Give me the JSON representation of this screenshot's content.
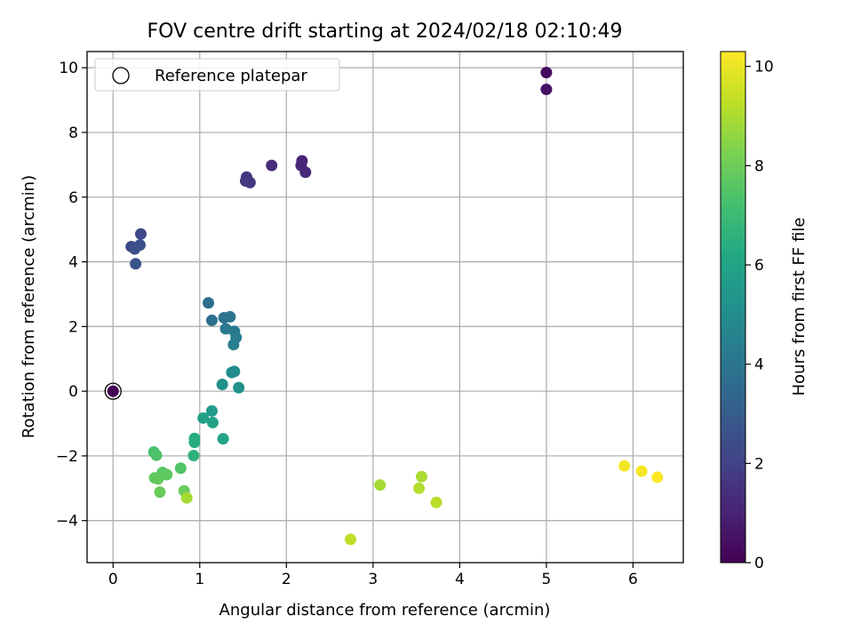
{
  "chart_data": {
    "type": "scatter",
    "title": "FOV centre drift starting at 2024/02/18 02:10:49",
    "xlabel": "Angular distance from reference (arcmin)",
    "ylabel": "Rotation from reference (arcmin)",
    "xlim": [
      -0.3,
      6.58
    ],
    "ylim": [
      -5.3,
      10.5
    ],
    "xticks": [
      0,
      1,
      2,
      3,
      4,
      5,
      6
    ],
    "yticks": [
      -4,
      -2,
      0,
      2,
      4,
      6,
      8,
      10
    ],
    "grid": true,
    "legend": {
      "position": "top-left",
      "entries": [
        "Reference platepar"
      ]
    },
    "colorbar": {
      "label": "Hours from first FF file",
      "range": [
        0,
        10.3
      ],
      "ticks": [
        0,
        2,
        4,
        6,
        8,
        10
      ],
      "colormap": "viridis"
    },
    "reference_point": {
      "x": 0,
      "y": 0
    },
    "points": [
      {
        "x": 0.0,
        "y": 0.0,
        "h": 0.0
      },
      {
        "x": 5.0,
        "y": 9.85,
        "h": 0.3
      },
      {
        "x": 5.0,
        "y": 9.33,
        "h": 0.5
      },
      {
        "x": 2.18,
        "y": 7.12,
        "h": 1.0
      },
      {
        "x": 2.17,
        "y": 6.98,
        "h": 1.1
      },
      {
        "x": 2.22,
        "y": 6.77,
        "h": 1.2
      },
      {
        "x": 1.83,
        "y": 6.98,
        "h": 1.3
      },
      {
        "x": 1.54,
        "y": 6.62,
        "h": 1.5
      },
      {
        "x": 1.53,
        "y": 6.5,
        "h": 1.6
      },
      {
        "x": 1.58,
        "y": 6.45,
        "h": 1.7
      },
      {
        "x": 0.32,
        "y": 4.86,
        "h": 2.2
      },
      {
        "x": 0.21,
        "y": 4.47,
        "h": 2.3
      },
      {
        "x": 0.25,
        "y": 4.4,
        "h": 2.4
      },
      {
        "x": 0.31,
        "y": 4.52,
        "h": 2.5
      },
      {
        "x": 0.26,
        "y": 3.94,
        "h": 2.6
      },
      {
        "x": 1.1,
        "y": 2.73,
        "h": 3.7
      },
      {
        "x": 1.14,
        "y": 2.19,
        "h": 3.8
      },
      {
        "x": 1.28,
        "y": 2.27,
        "h": 3.9
      },
      {
        "x": 1.35,
        "y": 2.3,
        "h": 4.0
      },
      {
        "x": 1.3,
        "y": 1.93,
        "h": 4.1
      },
      {
        "x": 1.4,
        "y": 1.85,
        "h": 4.2
      },
      {
        "x": 1.42,
        "y": 1.66,
        "h": 4.3
      },
      {
        "x": 1.39,
        "y": 1.44,
        "h": 4.4
      },
      {
        "x": 1.37,
        "y": 0.58,
        "h": 4.9
      },
      {
        "x": 1.4,
        "y": 0.61,
        "h": 5.0
      },
      {
        "x": 1.26,
        "y": 0.21,
        "h": 5.1
      },
      {
        "x": 1.45,
        "y": 0.11,
        "h": 5.2
      },
      {
        "x": 1.14,
        "y": -0.61,
        "h": 5.6
      },
      {
        "x": 1.04,
        "y": -0.83,
        "h": 5.8
      },
      {
        "x": 1.15,
        "y": -0.97,
        "h": 5.9
      },
      {
        "x": 1.27,
        "y": -1.47,
        "h": 6.0
      },
      {
        "x": 0.94,
        "y": -1.46,
        "h": 6.3
      },
      {
        "x": 0.94,
        "y": -1.58,
        "h": 6.4
      },
      {
        "x": 0.93,
        "y": -1.99,
        "h": 6.6
      },
      {
        "x": 0.47,
        "y": -1.88,
        "h": 7.3
      },
      {
        "x": 0.5,
        "y": -1.98,
        "h": 7.4
      },
      {
        "x": 0.78,
        "y": -2.38,
        "h": 7.5
      },
      {
        "x": 0.57,
        "y": -2.51,
        "h": 7.6
      },
      {
        "x": 0.62,
        "y": -2.58,
        "h": 7.7
      },
      {
        "x": 0.48,
        "y": -2.68,
        "h": 7.8
      },
      {
        "x": 0.52,
        "y": -2.71,
        "h": 7.8
      },
      {
        "x": 0.82,
        "y": -3.08,
        "h": 7.9
      },
      {
        "x": 0.54,
        "y": -3.12,
        "h": 7.9
      },
      {
        "x": 0.85,
        "y": -3.3,
        "h": 8.9
      },
      {
        "x": 3.08,
        "y": -2.9,
        "h": 8.9
      },
      {
        "x": 3.56,
        "y": -2.64,
        "h": 9.0
      },
      {
        "x": 3.53,
        "y": -3.0,
        "h": 9.1
      },
      {
        "x": 3.73,
        "y": -3.44,
        "h": 9.2
      },
      {
        "x": 2.74,
        "y": -4.58,
        "h": 9.3
      },
      {
        "x": 5.9,
        "y": -2.31,
        "h": 10.1
      },
      {
        "x": 6.1,
        "y": -2.47,
        "h": 10.2
      },
      {
        "x": 6.28,
        "y": -2.66,
        "h": 10.3
      }
    ]
  }
}
